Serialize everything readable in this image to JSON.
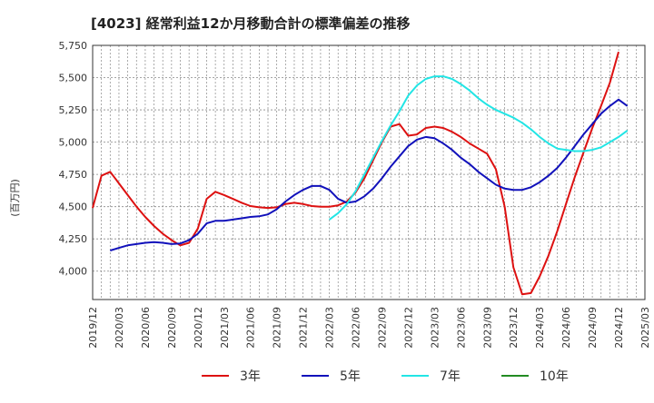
{
  "chart_data": {
    "type": "line",
    "title": "[4023]  経常利益12か月移動合計の標準偏差の推移",
    "ylabel": "(百万円)",
    "xlabel": "",
    "ylim": [
      3780,
      5750
    ],
    "y_ticks": [
      4000,
      4250,
      4500,
      4750,
      5000,
      5250,
      5500,
      5750
    ],
    "y_tick_labels": [
      "4,000",
      "4,250",
      "4,500",
      "4,750",
      "5,000",
      "5,250",
      "5,500",
      "5,750"
    ],
    "x_range": [
      "2019-12",
      "2025-03"
    ],
    "x_tick_labels": [
      "2019/12",
      "2020/03",
      "2020/06",
      "2020/09",
      "2020/12",
      "2021/03",
      "2021/06",
      "2021/09",
      "2021/12",
      "2022/03",
      "2022/06",
      "2022/09",
      "2022/12",
      "2023/03",
      "2023/06",
      "2023/09",
      "2023/12",
      "2024/03",
      "2024/06",
      "2024/09",
      "2024/12",
      "2025/03"
    ],
    "grid": true,
    "legend_position": "bottom",
    "series": [
      {
        "name": "3年",
        "color": "#dd1111",
        "points": [
          [
            "2019-12",
            4490
          ],
          [
            "2020-01",
            4740
          ],
          [
            "2020-02",
            4770
          ],
          [
            "2020-03",
            4680
          ],
          [
            "2020-04",
            4590
          ],
          [
            "2020-05",
            4500
          ],
          [
            "2020-06",
            4420
          ],
          [
            "2020-07",
            4350
          ],
          [
            "2020-08",
            4290
          ],
          [
            "2020-09",
            4240
          ],
          [
            "2020-10",
            4200
          ],
          [
            "2020-11",
            4220
          ],
          [
            "2020-12",
            4330
          ],
          [
            "2021-01",
            4560
          ],
          [
            "2021-02",
            4615
          ],
          [
            "2021-03",
            4590
          ],
          [
            "2021-04",
            4560
          ],
          [
            "2021-05",
            4530
          ],
          [
            "2021-06",
            4505
          ],
          [
            "2021-07",
            4495
          ],
          [
            "2021-08",
            4490
          ],
          [
            "2021-09",
            4495
          ],
          [
            "2021-10",
            4520
          ],
          [
            "2021-11",
            4530
          ],
          [
            "2021-12",
            4520
          ],
          [
            "2022-01",
            4505
          ],
          [
            "2022-02",
            4500
          ],
          [
            "2022-03",
            4500
          ],
          [
            "2022-04",
            4510
          ],
          [
            "2022-05",
            4540
          ],
          [
            "2022-06",
            4610
          ],
          [
            "2022-07",
            4720
          ],
          [
            "2022-08",
            4860
          ],
          [
            "2022-09",
            5000
          ],
          [
            "2022-10",
            5120
          ],
          [
            "2022-11",
            5140
          ],
          [
            "2022-12",
            5050
          ],
          [
            "2023-01",
            5060
          ],
          [
            "2023-02",
            5110
          ],
          [
            "2023-03",
            5120
          ],
          [
            "2023-04",
            5110
          ],
          [
            "2023-05",
            5080
          ],
          [
            "2023-06",
            5040
          ],
          [
            "2023-07",
            4990
          ],
          [
            "2023-08",
            4950
          ],
          [
            "2023-09",
            4910
          ],
          [
            "2023-10",
            4790
          ],
          [
            "2023-11",
            4500
          ],
          [
            "2023-12",
            4030
          ],
          [
            "2024-01",
            3820
          ],
          [
            "2024-02",
            3830
          ],
          [
            "2024-03",
            3960
          ],
          [
            "2024-04",
            4120
          ],
          [
            "2024-05",
            4310
          ],
          [
            "2024-06",
            4520
          ],
          [
            "2024-07",
            4730
          ],
          [
            "2024-08",
            4920
          ],
          [
            "2024-09",
            5110
          ],
          [
            "2024-10",
            5280
          ],
          [
            "2024-11",
            5460
          ],
          [
            "2024-12",
            5700
          ]
        ]
      },
      {
        "name": "5年",
        "color": "#1111bb",
        "points": [
          [
            "2020-02",
            4160
          ],
          [
            "2020-03",
            4180
          ],
          [
            "2020-04",
            4200
          ],
          [
            "2020-05",
            4210
          ],
          [
            "2020-06",
            4220
          ],
          [
            "2020-07",
            4225
          ],
          [
            "2020-08",
            4220
          ],
          [
            "2020-09",
            4210
          ],
          [
            "2020-10",
            4215
          ],
          [
            "2020-11",
            4240
          ],
          [
            "2020-12",
            4290
          ],
          [
            "2021-01",
            4370
          ],
          [
            "2021-02",
            4390
          ],
          [
            "2021-03",
            4390
          ],
          [
            "2021-04",
            4400
          ],
          [
            "2021-05",
            4410
          ],
          [
            "2021-06",
            4420
          ],
          [
            "2021-07",
            4425
          ],
          [
            "2021-08",
            4440
          ],
          [
            "2021-09",
            4480
          ],
          [
            "2021-10",
            4540
          ],
          [
            "2021-11",
            4590
          ],
          [
            "2021-12",
            4630
          ],
          [
            "2022-01",
            4660
          ],
          [
            "2022-02",
            4660
          ],
          [
            "2022-03",
            4630
          ],
          [
            "2022-04",
            4560
          ],
          [
            "2022-05",
            4530
          ],
          [
            "2022-06",
            4540
          ],
          [
            "2022-07",
            4580
          ],
          [
            "2022-08",
            4640
          ],
          [
            "2022-09",
            4720
          ],
          [
            "2022-10",
            4810
          ],
          [
            "2022-11",
            4890
          ],
          [
            "2022-12",
            4970
          ],
          [
            "2023-01",
            5020
          ],
          [
            "2023-02",
            5040
          ],
          [
            "2023-03",
            5030
          ],
          [
            "2023-04",
            4990
          ],
          [
            "2023-05",
            4940
          ],
          [
            "2023-06",
            4880
          ],
          [
            "2023-07",
            4830
          ],
          [
            "2023-08",
            4770
          ],
          [
            "2023-09",
            4720
          ],
          [
            "2023-10",
            4670
          ],
          [
            "2023-11",
            4640
          ],
          [
            "2023-12",
            4630
          ],
          [
            "2024-01",
            4630
          ],
          [
            "2024-02",
            4650
          ],
          [
            "2024-03",
            4690
          ],
          [
            "2024-04",
            4740
          ],
          [
            "2024-05",
            4800
          ],
          [
            "2024-06",
            4880
          ],
          [
            "2024-07",
            4970
          ],
          [
            "2024-08",
            5060
          ],
          [
            "2024-09",
            5140
          ],
          [
            "2024-10",
            5220
          ],
          [
            "2024-11",
            5280
          ],
          [
            "2024-12",
            5330
          ],
          [
            "2025-01",
            5280
          ]
        ]
      },
      {
        "name": "7年",
        "color": "#22e5e5",
        "points": [
          [
            "2022-03",
            4400
          ],
          [
            "2022-04",
            4450
          ],
          [
            "2022-05",
            4520
          ],
          [
            "2022-06",
            4620
          ],
          [
            "2022-07",
            4750
          ],
          [
            "2022-08",
            4880
          ],
          [
            "2022-09",
            5010
          ],
          [
            "2022-10",
            5130
          ],
          [
            "2022-11",
            5240
          ],
          [
            "2022-12",
            5360
          ],
          [
            "2023-01",
            5440
          ],
          [
            "2023-02",
            5490
          ],
          [
            "2023-03",
            5510
          ],
          [
            "2023-04",
            5510
          ],
          [
            "2023-05",
            5490
          ],
          [
            "2023-06",
            5450
          ],
          [
            "2023-07",
            5400
          ],
          [
            "2023-08",
            5340
          ],
          [
            "2023-09",
            5290
          ],
          [
            "2023-10",
            5250
          ],
          [
            "2023-11",
            5220
          ],
          [
            "2023-12",
            5190
          ],
          [
            "2024-01",
            5150
          ],
          [
            "2024-02",
            5100
          ],
          [
            "2024-03",
            5040
          ],
          [
            "2024-04",
            4990
          ],
          [
            "2024-05",
            4950
          ],
          [
            "2024-06",
            4940
          ],
          [
            "2024-07",
            4930
          ],
          [
            "2024-08",
            4930
          ],
          [
            "2024-09",
            4940
          ],
          [
            "2024-10",
            4960
          ],
          [
            "2024-11",
            5000
          ],
          [
            "2024-12",
            5040
          ],
          [
            "2025-01",
            5090
          ]
        ]
      },
      {
        "name": "10年",
        "color": "#228b22",
        "points": []
      }
    ]
  }
}
